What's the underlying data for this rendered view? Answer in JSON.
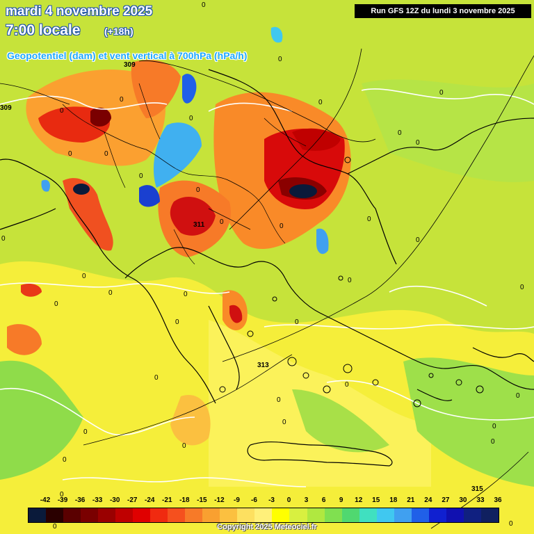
{
  "header": {
    "date": "mardi 4 novembre 2025",
    "time": "7:00 locale",
    "step": "(+18h)",
    "parameter": "Geopotentiel (dam) et vent vertical à 700hPa (hPa/h)",
    "run": "Run GFS 12Z du lundi 3 novembre 2025"
  },
  "contour_labels": [
    "309",
    "311",
    "313",
    "315",
    "309"
  ],
  "zero_label": "0",
  "legend": {
    "values": [
      "-42",
      "-39",
      "-36",
      "-33",
      "-30",
      "-27",
      "-24",
      "-21",
      "-18",
      "-15",
      "-12",
      "-9",
      "-6",
      "-3",
      "0",
      "3",
      "6",
      "9",
      "12",
      "15",
      "18",
      "21",
      "24",
      "27",
      "30",
      "33",
      "36"
    ],
    "colors": [
      "#0a1a3a",
      "#2a0000",
      "#5a0000",
      "#7a0000",
      "#9a0000",
      "#bf0000",
      "#e00000",
      "#f02a10",
      "#f5501e",
      "#f77a28",
      "#f9a030",
      "#fbc040",
      "#fde060",
      "#fff07a",
      "#ffff00",
      "#d8f040",
      "#b0e840",
      "#80e050",
      "#50d870",
      "#40e0c0",
      "#40c8f0",
      "#40a0f0",
      "#2060e8",
      "#1020d0",
      "#1010b0",
      "#102080",
      "#102060"
    ]
  },
  "copyright": "Copyright 2025 Meteociel.fr"
}
